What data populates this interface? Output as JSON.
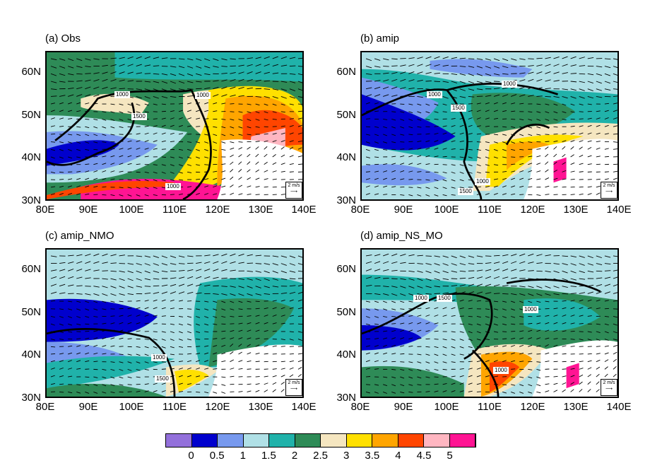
{
  "panels": [
    {
      "title": "(a) Obs",
      "contour_labels": [
        "1000",
        "1500",
        "1000",
        "1000"
      ],
      "ref_vector": "2 m/s"
    },
    {
      "title": "(b) amip",
      "contour_labels": [
        "1000",
        "1500",
        "1000",
        "1500",
        "1000"
      ],
      "ref_vector": "2 m/s"
    },
    {
      "title": "(c) amip_NMO",
      "contour_labels": [
        "1000",
        "1500"
      ],
      "ref_vector": "2 m/s"
    },
    {
      "title": "(d) amip_NS_MO",
      "contour_labels": [
        "1000",
        "1500",
        "1000",
        "1000"
      ],
      "ref_vector": "2 m/s"
    }
  ],
  "y_ticks": [
    "30N",
    "40N",
    "50N",
    "60N"
  ],
  "x_ticks": [
    "80E",
    "90E",
    "100E",
    "110E",
    "120E",
    "130E",
    "140E"
  ],
  "colorbar": {
    "labels": [
      "0",
      "0.5",
      "1",
      "1.5",
      "2",
      "2.5",
      "3",
      "3.5",
      "4",
      "4.5",
      "5"
    ],
    "colors": [
      "#9370DB",
      "#0000CD",
      "#7799EE",
      "#B0E0E6",
      "#20B2AA",
      "#2E8B57",
      "#F5E6C0",
      "#FFE000",
      "#FFA500",
      "#FF4500",
      "#FFB6C1",
      "#FF1493"
    ]
  }
}
